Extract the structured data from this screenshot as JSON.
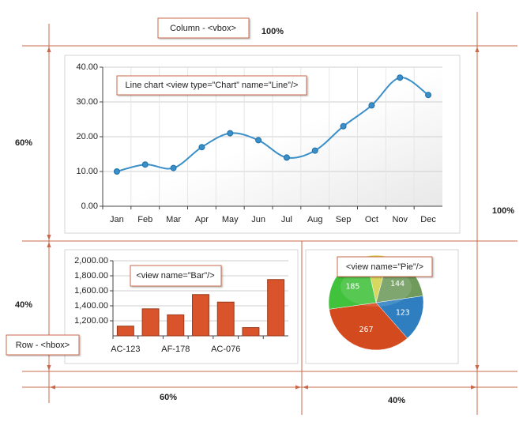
{
  "layout": {
    "column_label": "Column - <vbox>",
    "column_width": "100%",
    "top_height": "60%",
    "column_height": "100%",
    "bottom_height": "40%",
    "row_label": "Row - <hbox>",
    "left_width": "60%",
    "right_width": "40%"
  },
  "line_chart": {
    "type": "line",
    "annotation": "Line chart <view type=”Chart” name=”Line”/>",
    "categories": [
      "Jan",
      "Feb",
      "Mar",
      "Apr",
      "May",
      "Jun",
      "Jul",
      "Aug",
      "Sep",
      "Oct",
      "Nov",
      "Dec"
    ],
    "values": [
      10,
      12,
      11,
      17,
      21,
      19,
      14,
      16,
      23,
      29,
      37,
      32
    ],
    "color": "#3a8fc8",
    "ylim": [
      0,
      40
    ],
    "yticks": [
      {
        "value": 0,
        "label": "0.00"
      },
      {
        "value": 10,
        "label": "10.00"
      },
      {
        "value": 20,
        "label": "20.00"
      },
      {
        "value": 30,
        "label": "30.00"
      },
      {
        "value": 40,
        "label": "40.00"
      }
    ]
  },
  "bar_chart": {
    "type": "bar",
    "annotation": "<view name=”Bar”/>",
    "categories": [
      "AC-123",
      null,
      "AF-178",
      null,
      "AC-076",
      null,
      null
    ],
    "values": [
      1130,
      1360,
      1280,
      1550,
      1450,
      1110,
      1750
    ],
    "color": "#d9542b",
    "ylim": [
      1000,
      2000
    ],
    "yticks": [
      {
        "value": 1200,
        "label": "1,200.00"
      },
      {
        "value": 1400,
        "label": "1,400.00"
      },
      {
        "value": 1600,
        "label": "1,600.00"
      },
      {
        "value": 1800,
        "label": "1,800.00"
      },
      {
        "value": 2000,
        "label": "2,000.00"
      }
    ]
  },
  "pie_chart": {
    "type": "pie",
    "annotation": "<view name=”Pie”/>",
    "values": [
      60,
      144,
      123,
      267,
      185
    ],
    "colors": [
      "#d2d34a",
      "#6f9a5c",
      "#2f7fc0",
      "#d44a1f",
      "#40c23c"
    ]
  }
}
